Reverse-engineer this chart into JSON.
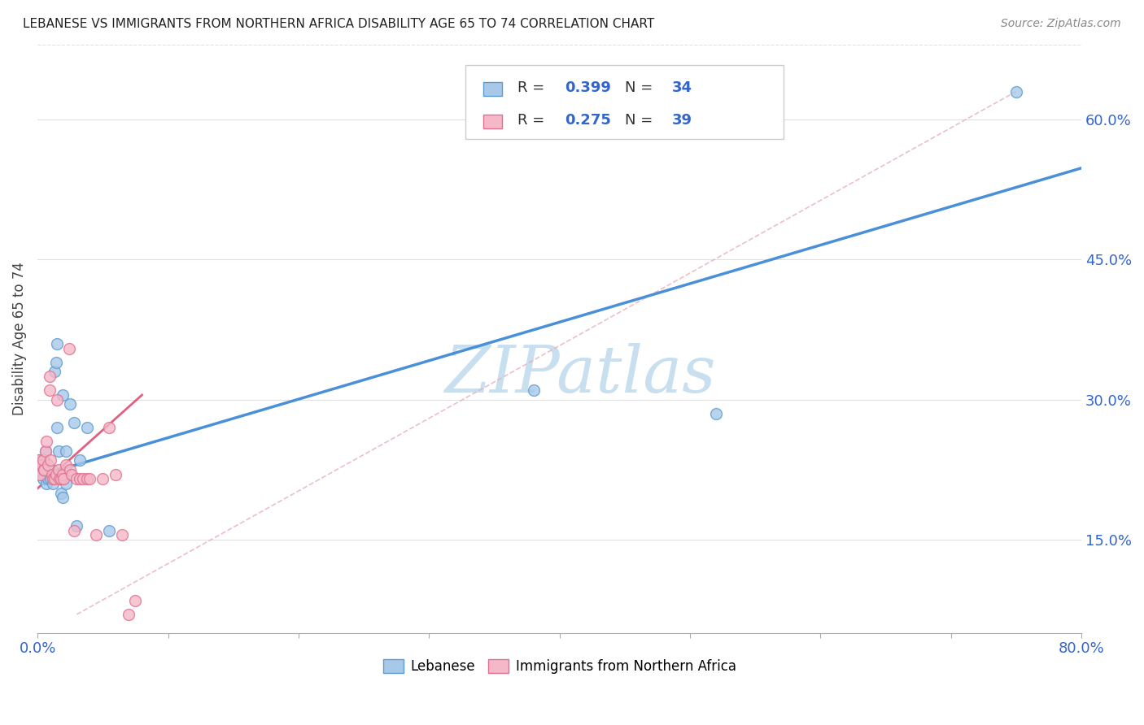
{
  "title": "LEBANESE VS IMMIGRANTS FROM NORTHERN AFRICA DISABILITY AGE 65 TO 74 CORRELATION CHART",
  "source": "Source: ZipAtlas.com",
  "ylabel_label": "Disability Age 65 to 74",
  "legend1_R": "0.399",
  "legend1_N": "34",
  "legend2_R": "0.275",
  "legend2_N": "39",
  "legend1_label": "Lebanese",
  "legend2_label": "Immigrants from Northern Africa",
  "blue_scatter_color": "#a8c8e8",
  "blue_edge_color": "#5b9bd5",
  "pink_scatter_color": "#f4b8c8",
  "pink_edge_color": "#e07090",
  "blue_line_color": "#4a90d9",
  "pink_line_color": "#e06080",
  "ref_line_color": "#e8b0b8",
  "text_blue": "#3366cc",
  "watermark": "ZIPatlas",
  "watermark_color": "#c8dff0",
  "blue_x": [
    0.001,
    0.002,
    0.003,
    0.004,
    0.005,
    0.005,
    0.006,
    0.007,
    0.008,
    0.009,
    0.01,
    0.011,
    0.012,
    0.013,
    0.014,
    0.015,
    0.015,
    0.016,
    0.017,
    0.018,
    0.019,
    0.02,
    0.022,
    0.025,
    0.028,
    0.032,
    0.038,
    0.055,
    0.38,
    0.52,
    0.75,
    0.019,
    0.022,
    0.03
  ],
  "blue_y": [
    0.235,
    0.225,
    0.22,
    0.215,
    0.23,
    0.235,
    0.245,
    0.21,
    0.215,
    0.22,
    0.215,
    0.225,
    0.21,
    0.33,
    0.34,
    0.36,
    0.27,
    0.245,
    0.22,
    0.2,
    0.195,
    0.215,
    0.21,
    0.295,
    0.275,
    0.235,
    0.27,
    0.16,
    0.31,
    0.285,
    0.63,
    0.305,
    0.245,
    0.165
  ],
  "pink_x": [
    0.001,
    0.002,
    0.003,
    0.004,
    0.005,
    0.005,
    0.006,
    0.007,
    0.008,
    0.009,
    0.009,
    0.01,
    0.011,
    0.012,
    0.013,
    0.014,
    0.015,
    0.016,
    0.017,
    0.018,
    0.019,
    0.02,
    0.022,
    0.024,
    0.025,
    0.026,
    0.028,
    0.03,
    0.032,
    0.035,
    0.038,
    0.04,
    0.045,
    0.05,
    0.055,
    0.06,
    0.065,
    0.07,
    0.075
  ],
  "pink_y": [
    0.235,
    0.22,
    0.23,
    0.235,
    0.225,
    0.225,
    0.245,
    0.255,
    0.23,
    0.31,
    0.325,
    0.235,
    0.22,
    0.215,
    0.215,
    0.22,
    0.3,
    0.225,
    0.215,
    0.215,
    0.22,
    0.215,
    0.23,
    0.355,
    0.225,
    0.22,
    0.16,
    0.215,
    0.215,
    0.215,
    0.215,
    0.215,
    0.155,
    0.215,
    0.27,
    0.22,
    0.155,
    0.07,
    0.085
  ],
  "blue_line_x0": 0.0,
  "blue_line_x1": 0.8,
  "blue_line_y0": 0.218,
  "blue_line_y1": 0.548,
  "pink_line_x0": 0.0,
  "pink_line_x1": 0.08,
  "pink_line_y0": 0.205,
  "pink_line_y1": 0.305,
  "ref_line_x0": 0.03,
  "ref_line_y0": 0.07,
  "ref_line_x1": 0.75,
  "ref_line_y1": 0.63,
  "xlim": [
    0.0,
    0.8
  ],
  "ylim": [
    0.05,
    0.68
  ],
  "ytick_vals": [
    0.15,
    0.3,
    0.45,
    0.6
  ],
  "ytick_labels": [
    "15.0%",
    "30.0%",
    "45.0%",
    "60.0%"
  ],
  "grid_color": "#e0e0e0",
  "marker_size": 100
}
